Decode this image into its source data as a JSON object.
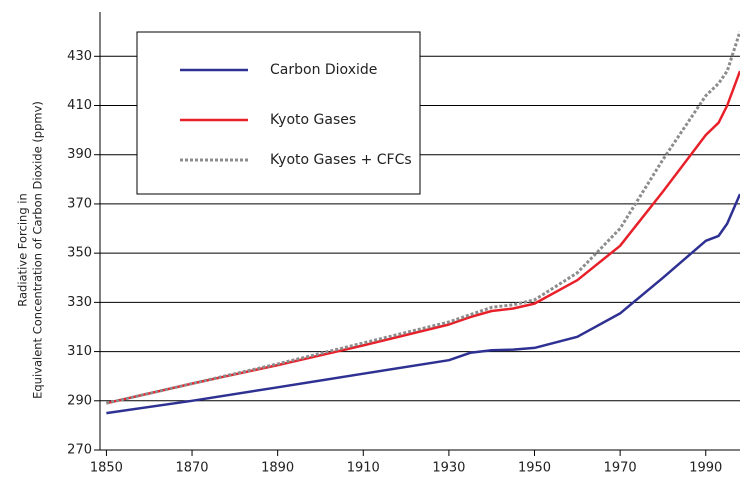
{
  "chart_data": {
    "type": "line",
    "y_label_lines": [
      "Radiative Forcing in",
      "Equivalent Concentration of Carbon Dioxide (ppmv)"
    ],
    "x": [
      1850,
      1870,
      1890,
      1910,
      1930,
      1935,
      1940,
      1945,
      1950,
      1960,
      1970,
      1980,
      1990,
      1993,
      1995,
      1998
    ],
    "series": [
      {
        "name": "Carbon Dioxide",
        "color": "#2e3192",
        "dash": false,
        "values": [
          285,
          290,
          295.5,
          301,
          306.5,
          309.5,
          310.5,
          310.8,
          311.5,
          316,
          325.5,
          340,
          355,
          357,
          362,
          374
        ]
      },
      {
        "name": "Kyoto Gases",
        "color": "#e8202a",
        "dash": false,
        "values": [
          289,
          297,
          304.5,
          312.5,
          321,
          324,
          326.5,
          327.5,
          329.5,
          339,
          353,
          375,
          398,
          403,
          410,
          424
        ]
      },
      {
        "name": "Kyoto Gases + CFCs",
        "color": "#8c8c8c",
        "dash": true,
        "values": [
          289,
          297,
          305,
          313.5,
          322,
          325,
          328,
          329,
          331,
          342,
          360,
          388,
          414,
          419,
          424,
          440
        ]
      }
    ],
    "xlim": [
      1848.5,
      1998
    ],
    "xticks": [
      1850,
      1870,
      1890,
      1910,
      1930,
      1950,
      1970,
      1990
    ],
    "ylim": [
      270,
      448
    ],
    "yticks": [
      270,
      290,
      310,
      330,
      350,
      370,
      390,
      410,
      430
    ],
    "grid": true
  }
}
